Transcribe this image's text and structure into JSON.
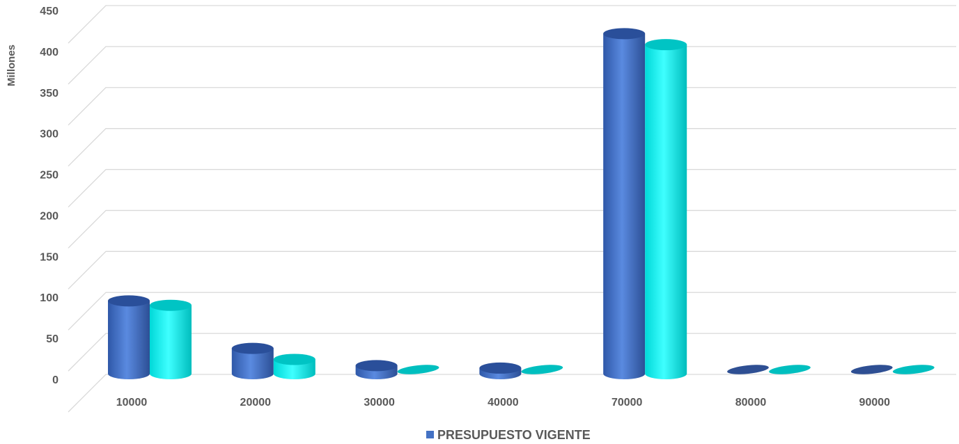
{
  "chart_data": {
    "type": "bar",
    "title": "",
    "ylabel": "Millones",
    "xlabel": "",
    "categories": [
      "10000",
      "20000",
      "30000",
      "40000",
      "70000",
      "80000",
      "90000"
    ],
    "ylim": [
      0,
      450
    ],
    "yticks": [
      0,
      50,
      100,
      150,
      200,
      250,
      300,
      350,
      400,
      450
    ],
    "grid": true,
    "style": "3d-cylinder",
    "series": [
      {
        "name": "PRESUPUESTO VIGENTE",
        "color": "#4472C4",
        "values": [
          88,
          30,
          9,
          6,
          414,
          1,
          1
        ]
      },
      {
        "name": "",
        "color": "#00FFFF",
        "values": [
          86,
          20,
          7,
          5,
          404,
          1,
          1
        ]
      }
    ],
    "legend": {
      "position": "bottom",
      "entries": [
        "PRESUPUESTO VIGENTE"
      ]
    }
  }
}
